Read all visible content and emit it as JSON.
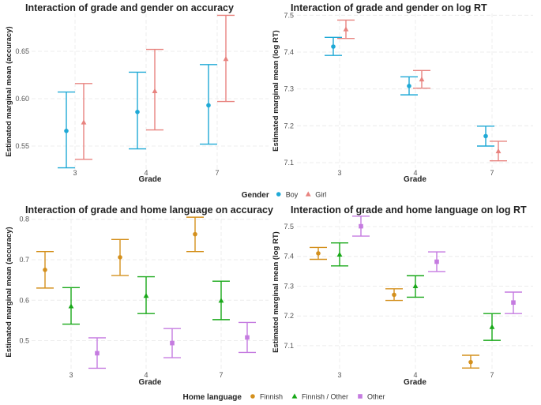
{
  "legend_gender": {
    "title": "Gender",
    "items": [
      {
        "label": "Boy",
        "color": "#1fa9d6",
        "shape": "circle"
      },
      {
        "label": "Girl",
        "color": "#e8837f",
        "shape": "triangle"
      }
    ]
  },
  "legend_language": {
    "title": "Home language",
    "items": [
      {
        "label": "Finnish",
        "color": "#d4901d",
        "shape": "circle"
      },
      {
        "label": "Finnish / Other",
        "color": "#18a818",
        "shape": "triangle"
      },
      {
        "label": "Other",
        "color": "#c57be0",
        "shape": "square"
      }
    ]
  },
  "chart_data": [
    {
      "id": "p1",
      "type": "errorbar",
      "title": "Interaction of grade and gender on accuracy",
      "xlabel": "Grade",
      "ylabel": "Estimated marginal mean (accuracy)",
      "categories": [
        "3",
        "4",
        "7"
      ],
      "ylim": [
        0.525,
        0.69
      ],
      "yticks": [
        "0.55",
        "0.60",
        "0.65"
      ],
      "legend": "legend_gender",
      "series": [
        {
          "name": "Boy",
          "estimates": [
            0.566,
            0.586,
            0.593
          ],
          "lower": [
            0.527,
            0.547,
            0.552
          ],
          "upper": [
            0.607,
            0.628,
            0.636
          ]
        },
        {
          "name": "Girl",
          "estimates": [
            0.575,
            0.608,
            0.642
          ],
          "lower": [
            0.536,
            0.567,
            0.597
          ],
          "upper": [
            0.616,
            0.652,
            0.688
          ]
        }
      ]
    },
    {
      "id": "p2",
      "type": "errorbar",
      "title": "Interaction of grade and gender on log RT",
      "xlabel": "Grade",
      "ylabel": "Estimated marginal mean (log RT)",
      "categories": [
        "3",
        "4",
        "7"
      ],
      "ylim": [
        7.085,
        7.505
      ],
      "yticks": [
        "7.1",
        "7.2",
        "7.3",
        "7.4",
        "7.5"
      ],
      "legend": "legend_gender",
      "series": [
        {
          "name": "Boy",
          "estimates": [
            7.415,
            7.308,
            7.172
          ],
          "lower": [
            7.391,
            7.284,
            7.145
          ],
          "upper": [
            7.44,
            7.333,
            7.199
          ]
        },
        {
          "name": "Girl",
          "estimates": [
            7.462,
            7.326,
            7.131
          ],
          "lower": [
            7.437,
            7.302,
            7.105
          ],
          "upper": [
            7.487,
            7.35,
            7.158
          ]
        }
      ]
    },
    {
      "id": "p3",
      "type": "errorbar",
      "title": "Interaction of grade and home language on accuracy",
      "xlabel": "Grade",
      "ylabel": "Estimated marginal mean (accuracy)",
      "categories": [
        "3",
        "4",
        "7"
      ],
      "ylim": [
        0.425,
        0.815
      ],
      "yticks": [
        "0.5",
        "0.6",
        "0.7",
        "0.8"
      ],
      "legend": "legend_language",
      "series": [
        {
          "name": "Finnish",
          "estimates": [
            0.675,
            0.706,
            0.763
          ],
          "lower": [
            0.63,
            0.661,
            0.72
          ],
          "upper": [
            0.72,
            0.75,
            0.805
          ]
        },
        {
          "name": "Finnish / Other",
          "estimates": [
            0.585,
            0.611,
            0.599
          ],
          "lower": [
            0.541,
            0.567,
            0.552
          ],
          "upper": [
            0.631,
            0.658,
            0.647
          ]
        },
        {
          "name": "Other",
          "estimates": [
            0.469,
            0.494,
            0.508
          ],
          "lower": [
            0.432,
            0.458,
            0.471
          ],
          "upper": [
            0.507,
            0.53,
            0.545
          ]
        }
      ]
    },
    {
      "id": "p4",
      "type": "errorbar",
      "title": "Interaction of grade and home language on log RT",
      "xlabel": "Grade",
      "ylabel": "Estimated marginal mean (log RT)",
      "categories": [
        "3",
        "4",
        "7"
      ],
      "ylim": [
        7.015,
        7.545
      ],
      "yticks": [
        "7.1",
        "7.2",
        "7.3",
        "7.4",
        "7.5"
      ],
      "legend": "legend_language",
      "series": [
        {
          "name": "Finnish",
          "estimates": [
            7.41,
            7.271,
            7.045
          ],
          "lower": [
            7.39,
            7.252,
            7.025
          ],
          "upper": [
            7.43,
            7.291,
            7.068
          ]
        },
        {
          "name": "Finnish / Other",
          "estimates": [
            7.406,
            7.3,
            7.163
          ],
          "lower": [
            7.368,
            7.263,
            7.118
          ],
          "upper": [
            7.445,
            7.335,
            7.208
          ]
        },
        {
          "name": "Other",
          "estimates": [
            7.501,
            7.382,
            7.245
          ],
          "lower": [
            7.468,
            7.349,
            7.208
          ],
          "upper": [
            7.535,
            7.415,
            7.28
          ]
        }
      ]
    }
  ]
}
